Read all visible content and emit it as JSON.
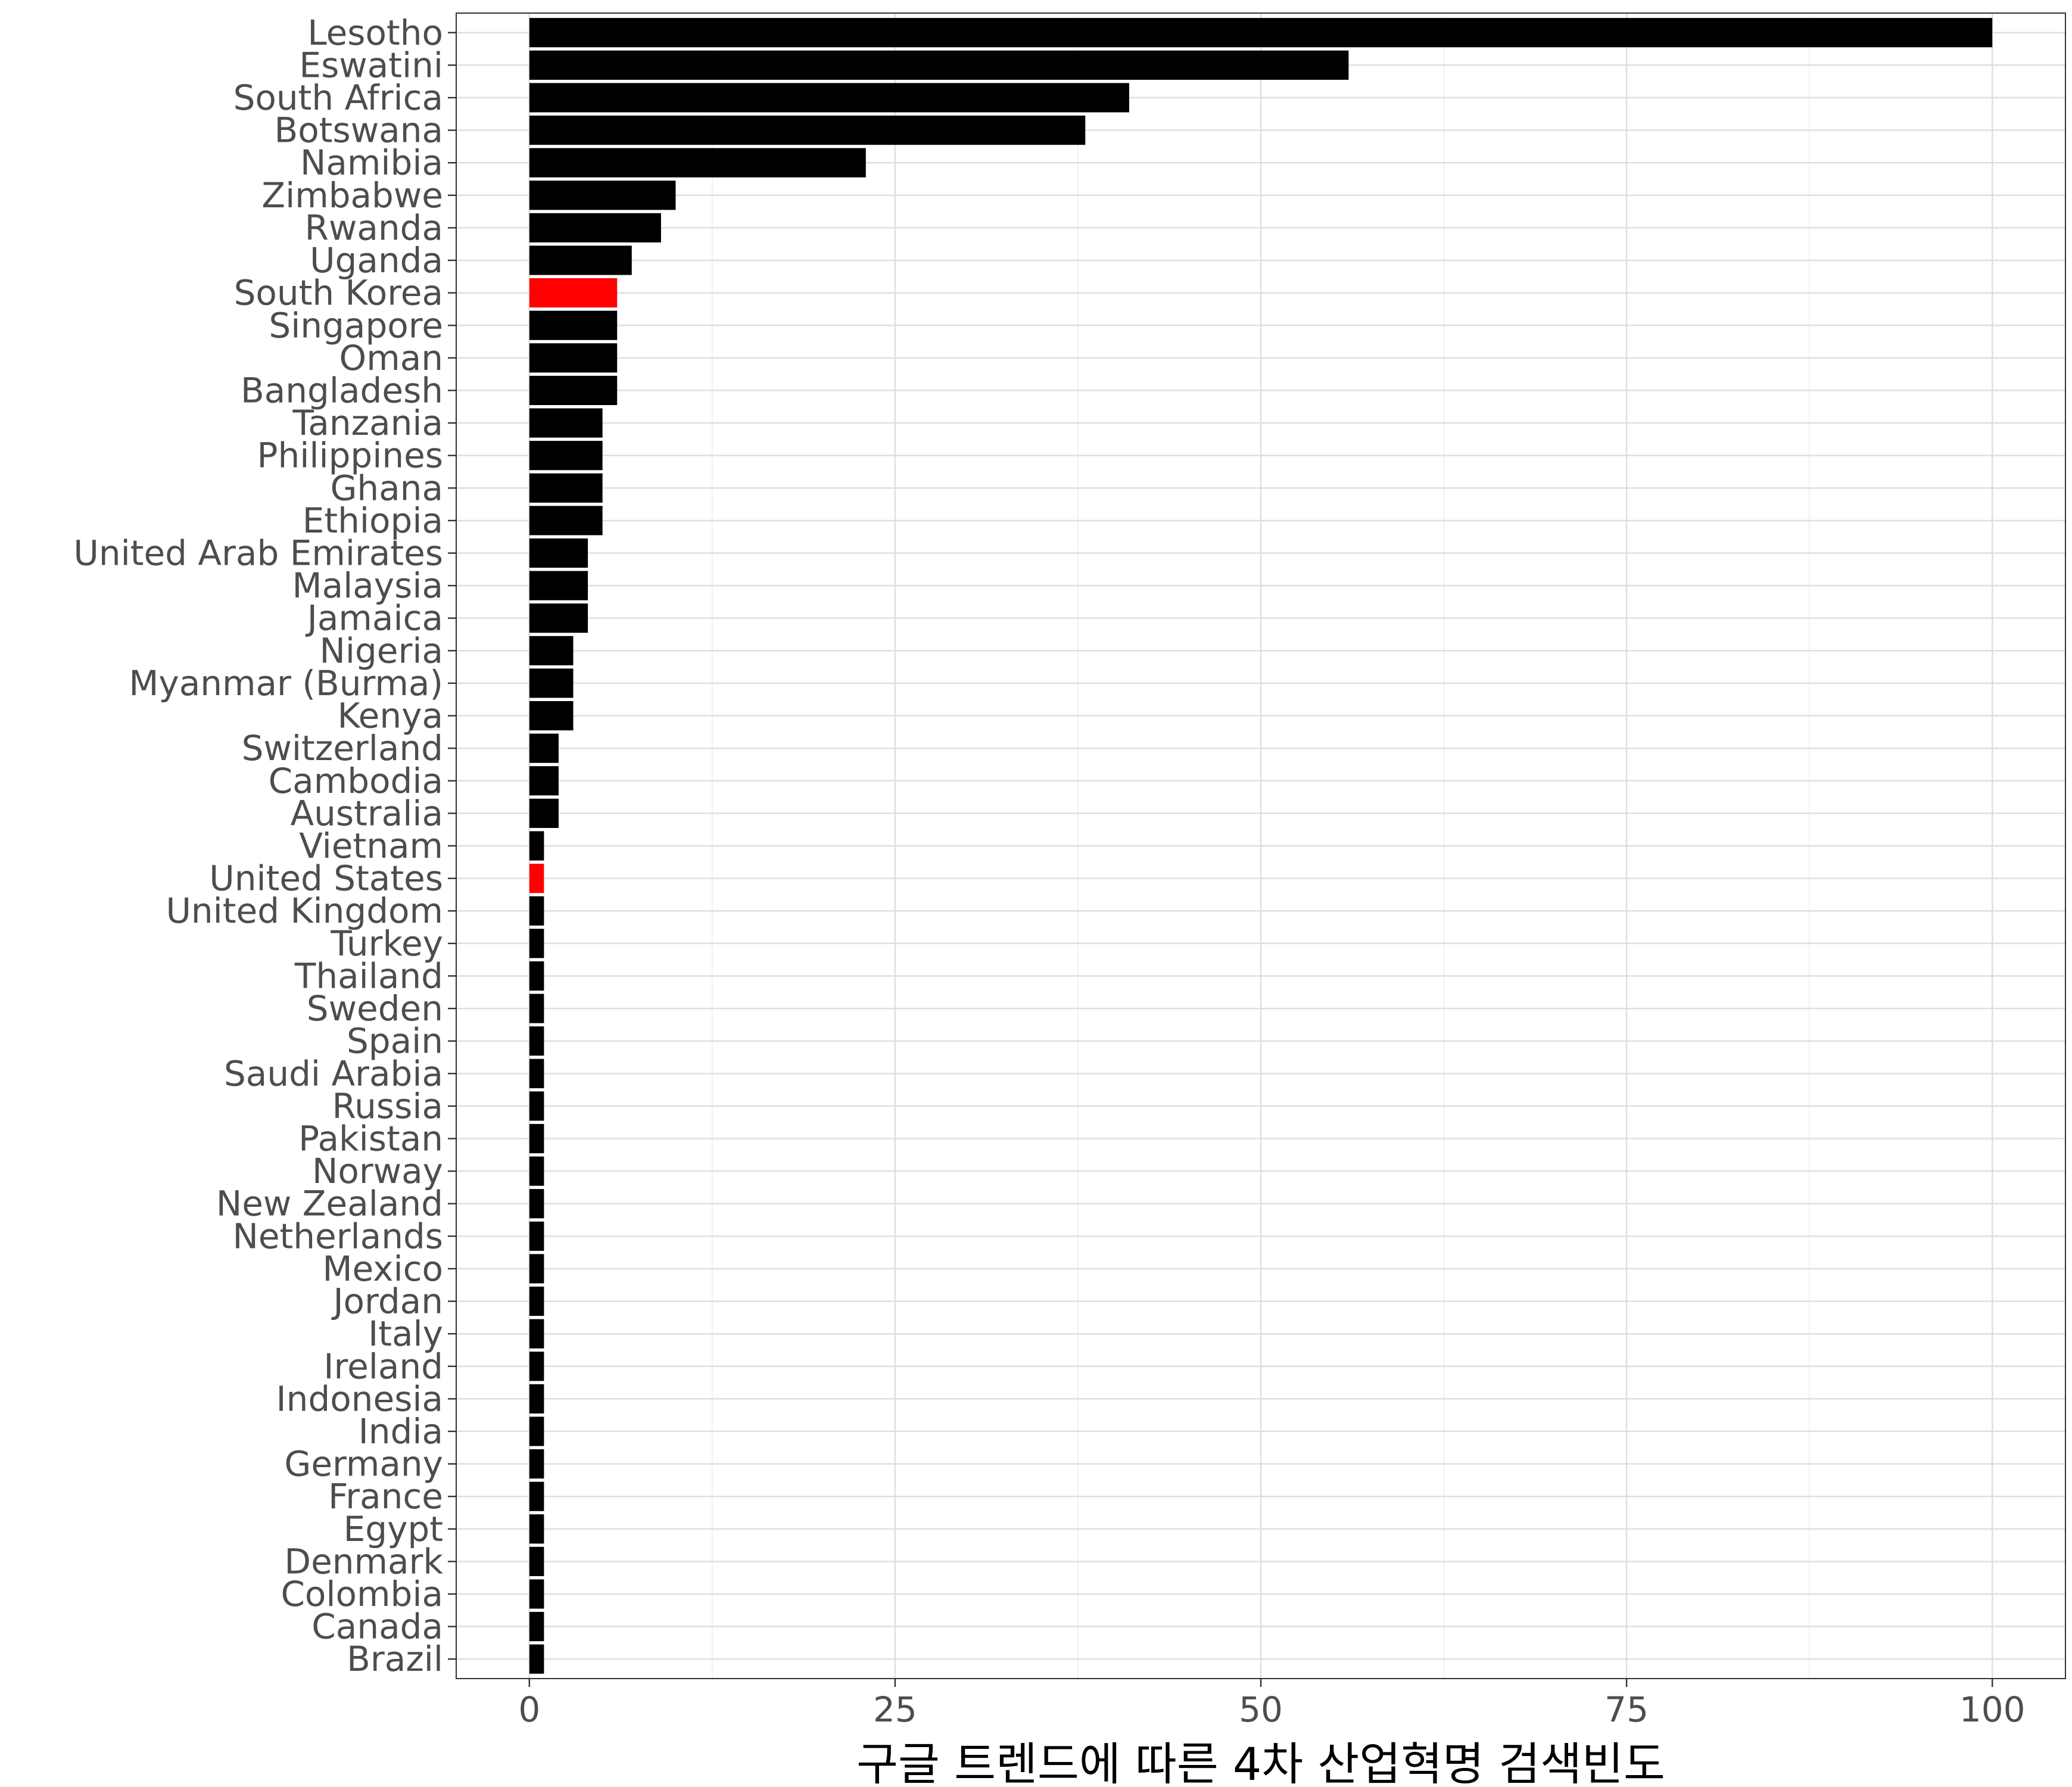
{
  "chart_data": {
    "type": "bar",
    "orientation": "horizontal",
    "xlabel": "구글 트렌드에 따른 4차 산업혁명 검색빈도",
    "ylabel": "",
    "xlim": [
      -5,
      105
    ],
    "xticks": [
      0,
      25,
      50,
      75,
      100
    ],
    "grid": true,
    "legend": "none",
    "default_color": "#000000",
    "highlight_color": "#ff0000",
    "categories": [
      "Lesotho",
      "Eswatini",
      "South Africa",
      "Botswana",
      "Namibia",
      "Zimbabwe",
      "Rwanda",
      "Uganda",
      "South Korea",
      "Singapore",
      "Oman",
      "Bangladesh",
      "Tanzania",
      "Philippines",
      "Ghana",
      "Ethiopia",
      "United Arab Emirates",
      "Malaysia",
      "Jamaica",
      "Nigeria",
      "Myanmar (Burma)",
      "Kenya",
      "Switzerland",
      "Cambodia",
      "Australia",
      "Vietnam",
      "United States",
      "United Kingdom",
      "Turkey",
      "Thailand",
      "Sweden",
      "Spain",
      "Saudi Arabia",
      "Russia",
      "Pakistan",
      "Norway",
      "New Zealand",
      "Netherlands",
      "Mexico",
      "Jordan",
      "Italy",
      "Ireland",
      "Indonesia",
      "India",
      "Germany",
      "France",
      "Egypt",
      "Denmark",
      "Colombia",
      "Canada",
      "Brazil"
    ],
    "values": [
      100,
      56,
      41,
      38,
      23,
      10,
      9,
      7,
      6,
      6,
      6,
      6,
      5,
      5,
      5,
      5,
      4,
      4,
      4,
      3,
      3,
      3,
      2,
      2,
      2,
      1,
      1,
      1,
      1,
      1,
      1,
      1,
      1,
      1,
      1,
      1,
      1,
      1,
      1,
      1,
      1,
      1,
      1,
      1,
      1,
      1,
      1,
      1,
      1,
      1,
      1
    ],
    "highlighted": [
      "South Korea",
      "United States"
    ]
  }
}
